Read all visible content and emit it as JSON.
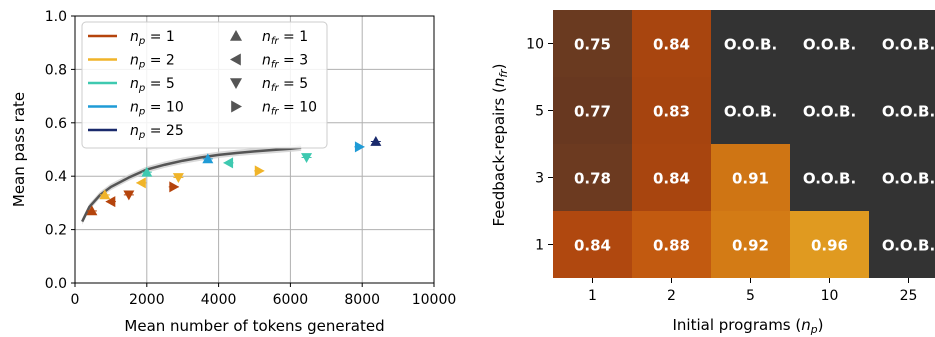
{
  "chart_data": [
    {
      "type": "scatter",
      "title": "",
      "xlabel": "Mean number of tokens generated",
      "ylabel": "Mean pass rate",
      "xlim": [
        0,
        10000
      ],
      "ylim": [
        0.0,
        1.0
      ],
      "xticks": [
        "0",
        "2000",
        "4000",
        "6000",
        "8000",
        "10000"
      ],
      "yticks": [
        "0.0",
        "0.2",
        "0.4",
        "0.6",
        "0.8",
        "1.0"
      ],
      "grid": true,
      "legend_position": "top-left",
      "colors": {
        "np1": "#b5440c",
        "np2": "#f0b429",
        "np5": "#3ec9b0",
        "np10": "#1f9bd6",
        "np25": "#1a2a6c",
        "marker_legend": "#555555",
        "curve": "#555555",
        "band": "#d0d0d0"
      },
      "legend": {
        "np": [
          {
            "label": "n_p = 1",
            "key": "np1"
          },
          {
            "label": "n_p = 2",
            "key": "np2"
          },
          {
            "label": "n_p = 5",
            "key": "np5"
          },
          {
            "label": "n_p = 10",
            "key": "np10"
          },
          {
            "label": "n_p = 25",
            "key": "np25"
          }
        ],
        "nfr": [
          {
            "label": "n_fr = 1",
            "marker": "up"
          },
          {
            "label": "n_fr = 3",
            "marker": "left"
          },
          {
            "label": "n_fr = 5",
            "marker": "down"
          },
          {
            "label": "n_fr = 10",
            "marker": "right"
          }
        ]
      },
      "curve": {
        "x": [
          200,
          400,
          700,
          1000,
          1500,
          2000,
          2500,
          3000,
          3500,
          4000,
          4500,
          5000,
          5500,
          6000,
          6300
        ],
        "y": [
          0.23,
          0.285,
          0.33,
          0.36,
          0.395,
          0.425,
          0.443,
          0.458,
          0.47,
          0.48,
          0.487,
          0.493,
          0.498,
          0.503,
          0.507
        ]
      },
      "points": [
        {
          "np": "np1",
          "marker": "up",
          "x": 470,
          "y": 0.27
        },
        {
          "np": "np1",
          "marker": "left",
          "x": 1000,
          "y": 0.305
        },
        {
          "np": "np1",
          "marker": "down",
          "x": 1500,
          "y": 0.33
        },
        {
          "np": "np1",
          "marker": "right",
          "x": 2750,
          "y": 0.36
        },
        {
          "np": "np2",
          "marker": "up",
          "x": 830,
          "y": 0.33
        },
        {
          "np": "np2",
          "marker": "left",
          "x": 1850,
          "y": 0.375
        },
        {
          "np": "np2",
          "marker": "down",
          "x": 2880,
          "y": 0.395
        },
        {
          "np": "np2",
          "marker": "right",
          "x": 5130,
          "y": 0.42
        },
        {
          "np": "np5",
          "marker": "up",
          "x": 2000,
          "y": 0.415
        },
        {
          "np": "np5",
          "marker": "left",
          "x": 4280,
          "y": 0.45
        },
        {
          "np": "np5",
          "marker": "down",
          "x": 6450,
          "y": 0.47
        },
        {
          "np": "np10",
          "marker": "up",
          "x": 3700,
          "y": 0.465
        },
        {
          "np": "np10",
          "marker": "right",
          "x": 7920,
          "y": 0.51
        },
        {
          "np": "np25",
          "marker": "up",
          "x": 8380,
          "y": 0.53
        }
      ]
    },
    {
      "type": "heatmap",
      "title": "",
      "xlabel": "Initial programs (n_p)",
      "ylabel": "Feedback-repairs (n_fr)",
      "x_categories": [
        "1",
        "2",
        "5",
        "10",
        "25"
      ],
      "y_categories": [
        "10",
        "5",
        "3",
        "1"
      ],
      "cells": [
        [
          "0.75",
          "0.84",
          "O.O.B.",
          "O.O.B.",
          "O.O.B."
        ],
        [
          "0.77",
          "0.83",
          "O.O.B.",
          "O.O.B.",
          "O.O.B."
        ],
        [
          "0.78",
          "0.84",
          "0.91",
          "O.O.B.",
          "O.O.B."
        ],
        [
          "0.84",
          "0.88",
          "0.92",
          "0.96",
          "O.O.B."
        ]
      ],
      "cell_colors": [
        [
          "#6a3a20",
          "#a8450f",
          "#333333",
          "#333333",
          "#333333"
        ],
        [
          "#683820",
          "#a6440f",
          "#333333",
          "#333333",
          "#333333"
        ],
        [
          "#6c3a20",
          "#a8450f",
          "#cf7514",
          "#333333",
          "#333333"
        ],
        [
          "#b0480f",
          "#c25a10",
          "#d37b15",
          "#e09a20",
          "#333333"
        ]
      ]
    }
  ]
}
